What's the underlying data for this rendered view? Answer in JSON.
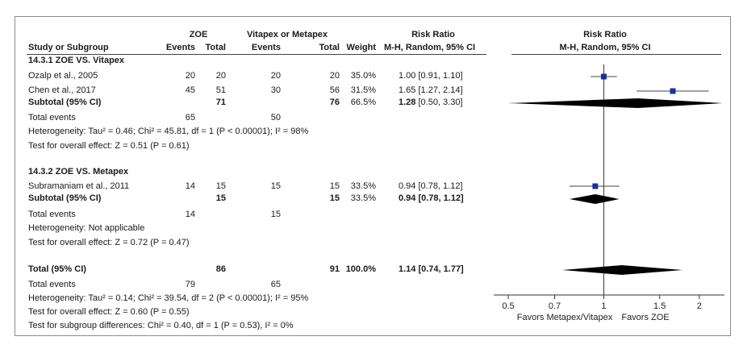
{
  "header": {
    "group1": "ZOE",
    "group2": "Vitapex or Metapex",
    "risk_ratio": "Risk Ratio",
    "study_col": "Study or Subgroup",
    "events1": "Events",
    "total1": "Total",
    "events2": "Events",
    "total2": "Total",
    "weight": "Weight",
    "method": "M-H, Random, 95% CI",
    "plot_title": "Risk Ratio",
    "plot_method": "M-H, Random, 95% CI"
  },
  "group_a": {
    "title": "14.3.1 ZOE VS. Vitapex",
    "studies": [
      {
        "name": "Ozalp et al., 2005",
        "e1": "20",
        "t1": "20",
        "e2": "20",
        "t2": "20",
        "weight": "35.0%",
        "ci": "1.00 [0.91, 1.10]"
      },
      {
        "name": "Chen et al., 2017",
        "e1": "45",
        "t1": "51",
        "e2": "30",
        "t2": "56",
        "weight": "31.5%",
        "ci": "1.65 [1.27, 2.14]"
      }
    ],
    "subtotal": {
      "label": "Subtotal (95% CI)",
      "t1": "71",
      "t2": "76",
      "weight": "66.5%",
      "rr": "1.28",
      "ci": "[0.50, 3.30]"
    },
    "total_events": {
      "label": "Total events",
      "e1": "65",
      "e2": "50"
    },
    "heterogeneity": "Heterogeneity: Tau² = 0.46; Chi² = 45.81, df = 1 (P < 0.00001); I² = 98%",
    "overall": "Test for overall effect: Z = 0.51 (P = 0.61)"
  },
  "group_b": {
    "title": "14.3.2 ZOE VS. Metapex",
    "studies": [
      {
        "name": "Subramaniam et al., 2011",
        "e1": "14",
        "t1": "15",
        "e2": "15",
        "t2": "15",
        "weight": "33.5%",
        "ci": "0.94 [0.78, 1.12]"
      }
    ],
    "subtotal": {
      "label": "Subtotal (95% CI)",
      "t1": "15",
      "t2": "15",
      "weight": "33.5%",
      "ci": "0.94 [0.78, 1.12]"
    },
    "total_events": {
      "label": "Total events",
      "e1": "14",
      "e2": "15"
    },
    "heterogeneity": "Heterogeneity: Not applicable",
    "overall": "Test for overall effect: Z = 0.72 (P = 0.47)"
  },
  "total": {
    "label": "Total (95% CI)",
    "t1": "86",
    "t2": "91",
    "weight": "100.0%",
    "ci": "1.14 [0.74, 1.77]",
    "total_events": {
      "label": "Total events",
      "e1": "79",
      "e2": "65"
    },
    "heterogeneity": "Heterogeneity: Tau² = 0.14; Chi² = 39.54, df = 2 (P < 0.00001); I² = 95%",
    "overall": "Test for overall effect: Z = 0.60 (P = 0.55)",
    "subgroup": "Test for subgroup differences: Chi² = 0.40, df = 1 (P = 0.53), I² = 0%"
  },
  "chart_data": {
    "type": "forest",
    "scale": "log",
    "title": "Risk Ratio",
    "subtitle": "M-H, Random, 95% CI",
    "ticks": [
      0.5,
      0.7,
      1,
      1.5,
      2
    ],
    "tick_labels": [
      "0.5",
      "0.7",
      "1",
      "1.5",
      "2"
    ],
    "xlim": [
      0.45,
      2.4
    ],
    "reference": 1,
    "left_label": "Favors Metapex/Vitapex",
    "right_label": "Favors ZOE",
    "studies": [
      {
        "label": "Ozalp et al., 2005",
        "rr": 1.0,
        "lo": 0.91,
        "hi": 1.1,
        "weight": 35.0
      },
      {
        "label": "Chen et al., 2017",
        "rr": 1.65,
        "lo": 1.27,
        "hi": 2.14,
        "weight": 31.5
      },
      {
        "label": "Subramaniam et al., 2011",
        "rr": 0.94,
        "lo": 0.78,
        "hi": 1.12,
        "weight": 33.5
      }
    ],
    "diamonds": [
      {
        "label": "Subtotal 14.3.1",
        "rr": 1.28,
        "lo": 0.5,
        "hi": 3.3
      },
      {
        "label": "Subtotal 14.3.2",
        "rr": 0.94,
        "lo": 0.78,
        "hi": 1.12
      },
      {
        "label": "Total",
        "rr": 1.14,
        "lo": 0.74,
        "hi": 1.77
      }
    ],
    "colors": {
      "marker": "#1a2f9e",
      "diamond": "#000000",
      "axis": "#333333"
    }
  }
}
